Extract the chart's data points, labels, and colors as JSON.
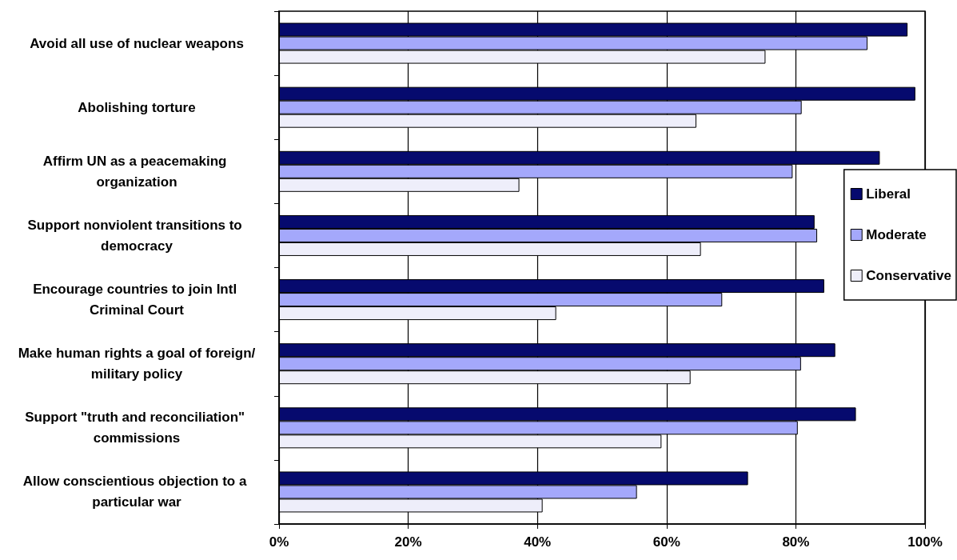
{
  "chart_data": {
    "type": "bar",
    "orientation": "horizontal",
    "categories": [
      "Avoid all use of nuclear weapons",
      "Abolishing torture",
      "Affirm UN as a peacemaking organization",
      "Support nonviolent transitions to democracy",
      "Encourage countries to join Intl Criminal Court",
      "Make human rights a goal of foreign/military policy",
      "Support \"truth and reconciliation\" commissions",
      "Allow conscientious objection to a particular war"
    ],
    "series": [
      {
        "name": "Liberal",
        "color": "#060a6e",
        "values": [
          97.3,
          98.5,
          93.0,
          82.9,
          84.4,
          86.1,
          89.3,
          72.6
        ]
      },
      {
        "name": "Moderate",
        "color": "#a4a8fb",
        "values": [
          91.1,
          80.9,
          79.5,
          83.3,
          68.6,
          80.8,
          80.3,
          55.4
        ]
      },
      {
        "name": "Conservative",
        "color": "#eeeefa",
        "values": [
          75.3,
          64.6,
          37.2,
          65.3,
          42.9,
          63.7,
          59.2,
          40.8
        ]
      }
    ],
    "xlim": [
      0,
      100
    ],
    "xticks": [
      {
        "value": 0,
        "label": "0%"
      },
      {
        "value": 20,
        "label": "20%"
      },
      {
        "value": 40,
        "label": "40%"
      },
      {
        "value": 60,
        "label": "60%"
      },
      {
        "value": 80,
        "label": "80%"
      },
      {
        "value": 100,
        "label": "100%"
      }
    ],
    "grid": "x",
    "legend": "right"
  }
}
